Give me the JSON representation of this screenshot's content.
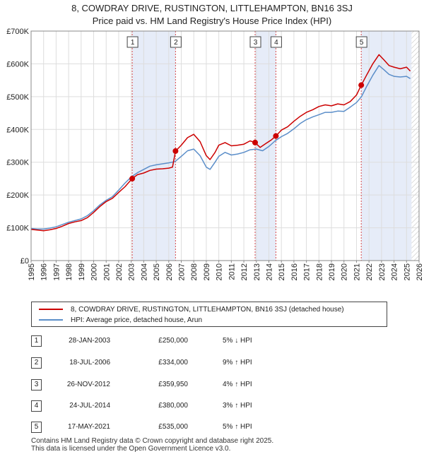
{
  "title_line1": "8, COWDRAY DRIVE, RUSTINGTON, LITTLEHAMPTON, BN16 3SJ",
  "title_line2": "Price paid vs. HM Land Registry's House Price Index (HPI)",
  "chart_data": {
    "type": "line",
    "xlim": [
      1995,
      2026
    ],
    "ylim": [
      0,
      700000
    ],
    "x_ticks": [
      "1995",
      "1996",
      "1997",
      "1998",
      "1999",
      "2000",
      "2001",
      "2002",
      "2003",
      "2004",
      "2005",
      "2006",
      "2007",
      "2008",
      "2009",
      "2010",
      "2011",
      "2012",
      "2013",
      "2014",
      "2015",
      "2016",
      "2017",
      "2018",
      "2019",
      "2020",
      "2021",
      "2022",
      "2023",
      "2024",
      "2025",
      "2026"
    ],
    "y_ticks": [
      {
        "value": 0,
        "label": "£0"
      },
      {
        "value": 100000,
        "label": "£100K"
      },
      {
        "value": 200000,
        "label": "£200K"
      },
      {
        "value": 300000,
        "label": "£300K"
      },
      {
        "value": 400000,
        "label": "£400K"
      },
      {
        "value": 500000,
        "label": "£500K"
      },
      {
        "value": 600000,
        "label": "£600K"
      },
      {
        "value": 700000,
        "label": "£700K"
      }
    ],
    "series": [
      {
        "name": "8, COWDRAY DRIVE, RUSTINGTON, LITTLEHAMPTON, BN16 3SJ (detached house)",
        "color": "#cc0000",
        "points": [
          [
            1995,
            95000
          ],
          [
            1995.5,
            93000
          ],
          [
            1996,
            91000
          ],
          [
            1996.5,
            94000
          ],
          [
            1997,
            98000
          ],
          [
            1997.5,
            105000
          ],
          [
            1998,
            113000
          ],
          [
            1998.5,
            118000
          ],
          [
            1999,
            122000
          ],
          [
            1999.5,
            131000
          ],
          [
            2000,
            147000
          ],
          [
            2000.5,
            165000
          ],
          [
            2001,
            180000
          ],
          [
            2001.5,
            190000
          ],
          [
            2002,
            208000
          ],
          [
            2002.5,
            225000
          ],
          [
            2003.08,
            250000
          ],
          [
            2003.5,
            262000
          ],
          [
            2004,
            267000
          ],
          [
            2004.5,
            275000
          ],
          [
            2005,
            279000
          ],
          [
            2005.5,
            280000
          ],
          [
            2006,
            282000
          ],
          [
            2006.3,
            285000
          ],
          [
            2006.54,
            334000
          ],
          [
            2007,
            352000
          ],
          [
            2007.5,
            375000
          ],
          [
            2008,
            385000
          ],
          [
            2008.5,
            363000
          ],
          [
            2009,
            320000
          ],
          [
            2009.3,
            308000
          ],
          [
            2009.7,
            330000
          ],
          [
            2010,
            352000
          ],
          [
            2010.5,
            360000
          ],
          [
            2011,
            350000
          ],
          [
            2011.5,
            352000
          ],
          [
            2012,
            355000
          ],
          [
            2012.5,
            365000
          ],
          [
            2012.9,
            359950
          ],
          [
            2013.3,
            345000
          ],
          [
            2013.8,
            358000
          ],
          [
            2014.2,
            368000
          ],
          [
            2014.56,
            380000
          ],
          [
            2015,
            398000
          ],
          [
            2015.5,
            408000
          ],
          [
            2016,
            425000
          ],
          [
            2016.5,
            440000
          ],
          [
            2017,
            452000
          ],
          [
            2017.5,
            460000
          ],
          [
            2018,
            470000
          ],
          [
            2018.5,
            475000
          ],
          [
            2019,
            472000
          ],
          [
            2019.5,
            478000
          ],
          [
            2020,
            475000
          ],
          [
            2020.5,
            485000
          ],
          [
            2021.0,
            505000
          ],
          [
            2021.38,
            535000
          ],
          [
            2021.8,
            565000
          ],
          [
            2022.3,
            600000
          ],
          [
            2022.8,
            628000
          ],
          [
            2023.2,
            612000
          ],
          [
            2023.6,
            595000
          ],
          [
            2024,
            590000
          ],
          [
            2024.5,
            585000
          ],
          [
            2025,
            590000
          ],
          [
            2025.3,
            578000
          ]
        ]
      },
      {
        "name": "HPI: Average price, detached house, Arun",
        "color": "#5b8ec9",
        "points": [
          [
            1995,
            98000
          ],
          [
            1995.5,
            96000
          ],
          [
            1996,
            96000
          ],
          [
            1996.5,
            99000
          ],
          [
            1997,
            103000
          ],
          [
            1997.5,
            110000
          ],
          [
            1998,
            117000
          ],
          [
            1998.5,
            122000
          ],
          [
            1999,
            127000
          ],
          [
            1999.5,
            137000
          ],
          [
            2000,
            152000
          ],
          [
            2000.5,
            170000
          ],
          [
            2001,
            184000
          ],
          [
            2001.5,
            195000
          ],
          [
            2002,
            215000
          ],
          [
            2002.5,
            236000
          ],
          [
            2003,
            255000
          ],
          [
            2003.5,
            268000
          ],
          [
            2004,
            278000
          ],
          [
            2004.5,
            288000
          ],
          [
            2005,
            292000
          ],
          [
            2005.5,
            295000
          ],
          [
            2006,
            298000
          ],
          [
            2006.5,
            302000
          ],
          [
            2007,
            318000
          ],
          [
            2007.5,
            335000
          ],
          [
            2008,
            340000
          ],
          [
            2008.5,
            320000
          ],
          [
            2009,
            285000
          ],
          [
            2009.3,
            278000
          ],
          [
            2009.7,
            300000
          ],
          [
            2010,
            318000
          ],
          [
            2010.5,
            330000
          ],
          [
            2011,
            322000
          ],
          [
            2011.5,
            325000
          ],
          [
            2012,
            330000
          ],
          [
            2012.5,
            338000
          ],
          [
            2013,
            340000
          ],
          [
            2013.5,
            335000
          ],
          [
            2014,
            348000
          ],
          [
            2014.5,
            365000
          ],
          [
            2015,
            378000
          ],
          [
            2015.5,
            388000
          ],
          [
            2016,
            402000
          ],
          [
            2016.5,
            418000
          ],
          [
            2017,
            430000
          ],
          [
            2017.5,
            438000
          ],
          [
            2018,
            445000
          ],
          [
            2018.5,
            452000
          ],
          [
            2019,
            452000
          ],
          [
            2019.5,
            456000
          ],
          [
            2020,
            455000
          ],
          [
            2020.5,
            468000
          ],
          [
            2021,
            482000
          ],
          [
            2021.4,
            500000
          ],
          [
            2021.8,
            530000
          ],
          [
            2022.3,
            565000
          ],
          [
            2022.8,
            595000
          ],
          [
            2023.2,
            582000
          ],
          [
            2023.6,
            568000
          ],
          [
            2024,
            562000
          ],
          [
            2024.5,
            560000
          ],
          [
            2025,
            562000
          ],
          [
            2025.3,
            555000
          ]
        ]
      }
    ],
    "sales": [
      {
        "n": "1",
        "x": 2003.08,
        "y": 250000
      },
      {
        "n": "2",
        "x": 2006.54,
        "y": 334000
      },
      {
        "n": "3",
        "x": 2012.9,
        "y": 359950
      },
      {
        "n": "4",
        "x": 2014.56,
        "y": 380000
      },
      {
        "n": "5",
        "x": 2021.38,
        "y": 535000
      }
    ],
    "shaded_ranges": [
      [
        2003.08,
        2006.54
      ],
      [
        2012.9,
        2014.56
      ],
      [
        2021.38,
        2025.4
      ]
    ],
    "future_hatch_from": 2025.4
  },
  "legend": {
    "property_label": "8, COWDRAY DRIVE, RUSTINGTON, LITTLEHAMPTON, BN16 3SJ (detached house)",
    "hpi_label": "HPI: Average price, detached house, Arun",
    "property_color": "#cc0000",
    "hpi_color": "#5b8ec9"
  },
  "transactions": [
    {
      "n": "1",
      "date": "28-JAN-2003",
      "price": "£250,000",
      "change": "5% ↓ HPI"
    },
    {
      "n": "2",
      "date": "18-JUL-2006",
      "price": "£334,000",
      "change": "9% ↑ HPI"
    },
    {
      "n": "3",
      "date": "26-NOV-2012",
      "price": "£359,950",
      "change": "4% ↑ HPI"
    },
    {
      "n": "4",
      "date": "24-JUL-2014",
      "price": "£380,000",
      "change": "3% ↑ HPI"
    },
    {
      "n": "5",
      "date": "17-MAY-2021",
      "price": "£535,000",
      "change": "5% ↑ HPI"
    }
  ],
  "footer_line1": "Contains HM Land Registry data © Crown copyright and database right 2025.",
  "footer_line2": "This data is licensed under the Open Government Licence v3.0."
}
